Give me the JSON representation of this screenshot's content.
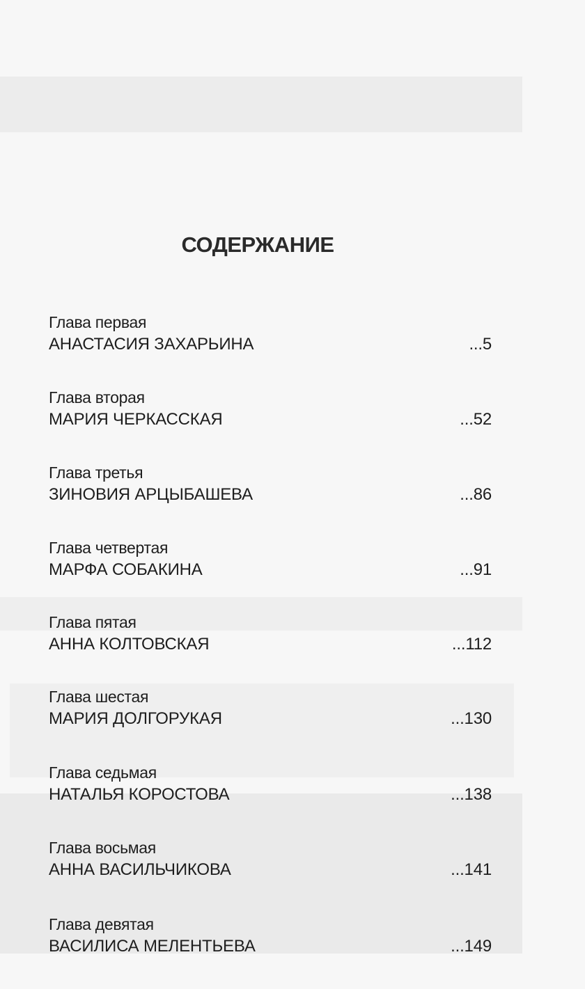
{
  "heading": "СОДЕРЖАНИЕ",
  "entries": [
    {
      "chapter": "Глава первая",
      "name": "АНАСТАСИЯ ЗАХАРЬИНА",
      "page": "...5"
    },
    {
      "chapter": "Глава вторая",
      "name": "МАРИЯ ЧЕРКАССКАЯ",
      "page": "...52"
    },
    {
      "chapter": "Глава третья",
      "name": "ЗИНОВИЯ АРЦЫБАШЕВА",
      "page": "...86"
    },
    {
      "chapter": "Глава четвертая",
      "name": "МАРФА СОБАКИНА",
      "page": "...91"
    },
    {
      "chapter": "Глава пятая",
      "name": "АННА КОЛТОВСКАЯ",
      "page": "...112"
    },
    {
      "chapter": "Глава шестая",
      "name": "МАРИЯ ДОЛГОРУКАЯ",
      "page": "...130"
    },
    {
      "chapter": "Глава седьмая",
      "name": "НАТАЛЬЯ КОРОСТОВА",
      "page": "...138"
    },
    {
      "chapter": "Глава восьмая",
      "name": "АННА ВАСИЛЬЧИКОВА",
      "page": "...141"
    },
    {
      "chapter": "Глава девятая",
      "name": "ВАСИЛИСА МЕЛЕНТЬЕВА",
      "page": "...149"
    }
  ]
}
